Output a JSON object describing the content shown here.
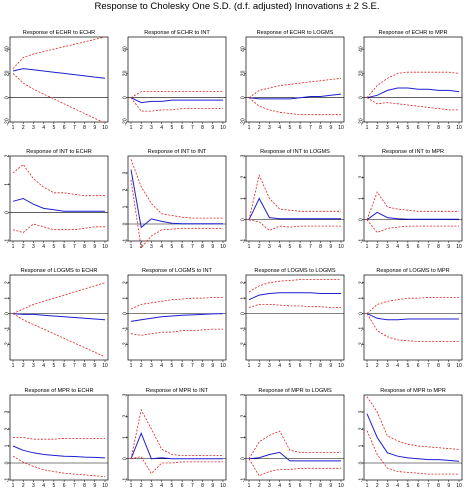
{
  "title": "Response to Cholesky One S.D. (d.f. adjusted) Innovations ± 2 S.E.",
  "colors": {
    "response": "#1f1fd0",
    "band": "#e02020",
    "zero": "#000000",
    "frame": "#000000",
    "background": "#ffffff"
  },
  "chart_data": [
    {
      "type": "line",
      "title": "Response of ECHR to ECHR",
      "x": [
        1,
        2,
        3,
        4,
        5,
        6,
        7,
        8,
        9,
        10
      ],
      "ylim": [
        -20,
        50
      ],
      "yticks": [
        -20,
        0,
        20,
        40
      ],
      "series": [
        {
          "role": "response",
          "values": [
            22,
            24,
            23,
            22,
            21,
            20,
            19,
            18,
            17,
            16
          ]
        },
        {
          "role": "upper",
          "values": [
            24,
            33,
            36,
            38,
            40,
            42,
            44,
            46,
            48,
            50
          ]
        },
        {
          "role": "lower",
          "values": [
            20,
            12,
            7,
            3,
            -1,
            -5,
            -9,
            -13,
            -17,
            -21
          ]
        }
      ]
    },
    {
      "type": "line",
      "title": "Response of ECHR to INT",
      "x": [
        1,
        2,
        3,
        4,
        5,
        6,
        7,
        8,
        9,
        10
      ],
      "ylim": [
        -20,
        50
      ],
      "yticks": [
        -20,
        0,
        20,
        40
      ],
      "series": [
        {
          "role": "response",
          "values": [
            0,
            -4,
            -3,
            -3,
            -2,
            -2,
            -2,
            -2,
            -2,
            -2
          ]
        },
        {
          "role": "upper",
          "values": [
            0,
            5,
            5,
            5,
            5,
            5,
            5,
            5,
            5,
            5
          ]
        },
        {
          "role": "lower",
          "values": [
            0,
            -11,
            -11,
            -10,
            -10,
            -9,
            -9,
            -9,
            -9,
            -9
          ]
        }
      ]
    },
    {
      "type": "line",
      "title": "Response of ECHR to LOGMS",
      "x": [
        1,
        2,
        3,
        4,
        5,
        6,
        7,
        8,
        9,
        10
      ],
      "ylim": [
        -20,
        50
      ],
      "yticks": [
        -20,
        0,
        20,
        40
      ],
      "series": [
        {
          "role": "response",
          "values": [
            0,
            -1,
            -1,
            -1,
            -1,
            0,
            1,
            1,
            2,
            3
          ]
        },
        {
          "role": "upper",
          "values": [
            0,
            6,
            8,
            10,
            11,
            12,
            13,
            14,
            15,
            16
          ]
        },
        {
          "role": "lower",
          "values": [
            0,
            -7,
            -10,
            -12,
            -13,
            -14,
            -14,
            -14,
            -14,
            -14
          ]
        }
      ]
    },
    {
      "type": "line",
      "title": "Response of ECHR to MPR",
      "x": [
        1,
        2,
        3,
        4,
        5,
        6,
        7,
        8,
        9,
        10
      ],
      "ylim": [
        -20,
        50
      ],
      "yticks": [
        -20,
        0,
        20,
        40
      ],
      "series": [
        {
          "role": "response",
          "values": [
            0,
            2,
            6,
            8,
            8,
            7,
            7,
            6,
            6,
            5
          ]
        },
        {
          "role": "upper",
          "values": [
            0,
            10,
            16,
            20,
            21,
            21,
            21,
            21,
            21,
            20
          ]
        },
        {
          "role": "lower",
          "values": [
            0,
            -5,
            -4,
            -5,
            -6,
            -7,
            -8,
            -9,
            -10,
            -10
          ]
        }
      ]
    },
    {
      "type": "line",
      "title": "Response of INT to ECHR",
      "x": [
        1,
        2,
        3,
        4,
        5,
        6,
        7,
        8,
        9,
        10
      ],
      "ylim": [
        -1,
        2
      ],
      "yticks": [
        -1,
        0,
        1,
        2
      ],
      "series": [
        {
          "role": "response",
          "values": [
            0.4,
            0.5,
            0.3,
            0.15,
            0.1,
            0.05,
            0.05,
            0.05,
            0.05,
            0.05
          ]
        },
        {
          "role": "upper",
          "values": [
            1.4,
            1.7,
            1.2,
            0.9,
            0.7,
            0.7,
            0.65,
            0.6,
            0.6,
            0.6
          ]
        },
        {
          "role": "lower",
          "values": [
            -0.6,
            -0.7,
            -0.4,
            -0.5,
            -0.6,
            -0.6,
            -0.6,
            -0.55,
            -0.5,
            -0.5
          ]
        }
      ]
    },
    {
      "type": "line",
      "title": "Response of INT to INT",
      "x": [
        1,
        2,
        3,
        4,
        5,
        6,
        7,
        8,
        9,
        10
      ],
      "ylim": [
        -1,
        4
      ],
      "yticks": [
        -1,
        0,
        1,
        2,
        3
      ],
      "series": [
        {
          "role": "response",
          "values": [
            3.2,
            -0.2,
            0.3,
            0.15,
            0.05,
            0.02,
            0.02,
            0.02,
            0.02,
            0.02
          ]
        },
        {
          "role": "upper",
          "values": [
            3.8,
            2.2,
            1.2,
            0.6,
            0.5,
            0.4,
            0.35,
            0.35,
            0.35,
            0.35
          ]
        },
        {
          "role": "lower",
          "values": [
            2.6,
            -1.4,
            -0.7,
            -0.35,
            -0.3,
            -0.25,
            -0.25,
            -0.25,
            -0.25,
            -0.25
          ]
        }
      ]
    },
    {
      "type": "line",
      "title": "Response of INT to LOGMS",
      "x": [
        1,
        2,
        3,
        4,
        5,
        6,
        7,
        8,
        9,
        10
      ],
      "ylim": [
        -1,
        3
      ],
      "yticks": [
        -1,
        0,
        1,
        2,
        3
      ],
      "series": [
        {
          "role": "response",
          "values": [
            0,
            1.0,
            0.1,
            0.05,
            0.05,
            0.05,
            0.05,
            0.05,
            0.05,
            0.05
          ]
        },
        {
          "role": "upper",
          "values": [
            0,
            2.1,
            1.0,
            0.5,
            0.45,
            0.4,
            0.4,
            0.4,
            0.4,
            0.4
          ]
        },
        {
          "role": "lower",
          "values": [
            0,
            -0.1,
            -0.5,
            -0.3,
            -0.35,
            -0.3,
            -0.3,
            -0.3,
            -0.3,
            -0.3
          ]
        }
      ]
    },
    {
      "type": "line",
      "title": "Response of INT to MPR",
      "x": [
        1,
        2,
        3,
        4,
        5,
        6,
        7,
        8,
        9,
        10
      ],
      "ylim": [
        -1,
        3
      ],
      "yticks": [
        -1,
        0,
        1,
        2,
        3
      ],
      "series": [
        {
          "role": "response",
          "values": [
            0,
            0.35,
            0.1,
            0.05,
            0.02,
            0.02,
            0.02,
            0.02,
            0.02,
            0.02
          ]
        },
        {
          "role": "upper",
          "values": [
            0,
            1.3,
            0.6,
            0.5,
            0.45,
            0.4,
            0.4,
            0.4,
            0.4,
            0.4
          ]
        },
        {
          "role": "lower",
          "values": [
            0,
            -0.6,
            -0.4,
            -0.35,
            -0.3,
            -0.3,
            -0.3,
            -0.3,
            -0.3,
            -0.3
          ]
        }
      ]
    },
    {
      "type": "line",
      "title": "Response of LOGMS to ECHR",
      "x": [
        1,
        2,
        3,
        4,
        5,
        6,
        7,
        8,
        9,
        10
      ],
      "ylim": [
        -3,
        2.5
      ],
      "yticks": [
        -2,
        -1,
        0,
        1,
        2
      ],
      "series": [
        {
          "role": "response",
          "values": [
            0,
            -0.05,
            -0.05,
            -0.1,
            -0.15,
            -0.2,
            -0.25,
            -0.3,
            -0.35,
            -0.4
          ]
        },
        {
          "role": "upper",
          "values": [
            0,
            0.3,
            0.6,
            0.8,
            1.0,
            1.2,
            1.4,
            1.6,
            1.8,
            2.0
          ]
        },
        {
          "role": "lower",
          "values": [
            0,
            -0.4,
            -0.7,
            -1.0,
            -1.3,
            -1.6,
            -1.9,
            -2.2,
            -2.5,
            -2.8
          ]
        }
      ]
    },
    {
      "type": "line",
      "title": "Response of LOGMS to INT",
      "x": [
        1,
        2,
        3,
        4,
        5,
        6,
        7,
        8,
        9,
        10
      ],
      "ylim": [
        -3,
        2.5
      ],
      "yticks": [
        -2,
        -1,
        0,
        1,
        2
      ],
      "series": [
        {
          "role": "response",
          "values": [
            -0.5,
            -0.4,
            -0.3,
            -0.2,
            -0.15,
            -0.1,
            -0.08,
            -0.05,
            -0.02,
            0
          ]
        },
        {
          "role": "upper",
          "values": [
            0.3,
            0.6,
            0.7,
            0.8,
            0.9,
            0.95,
            1.0,
            1.0,
            1.05,
            1.05
          ]
        },
        {
          "role": "lower",
          "values": [
            -1.3,
            -1.4,
            -1.3,
            -1.2,
            -1.2,
            -1.1,
            -1.1,
            -1.05,
            -1.0,
            -1.0
          ]
        }
      ]
    },
    {
      "type": "line",
      "title": "Response of LOGMS to LOGMS",
      "x": [
        1,
        2,
        3,
        4,
        5,
        6,
        7,
        8,
        9,
        10
      ],
      "ylim": [
        -3,
        2.5
      ],
      "yticks": [
        -2,
        -1,
        0,
        1,
        2
      ],
      "series": [
        {
          "role": "response",
          "values": [
            0.9,
            1.2,
            1.3,
            1.35,
            1.35,
            1.35,
            1.35,
            1.3,
            1.3,
            1.3
          ]
        },
        {
          "role": "upper",
          "values": [
            1.4,
            1.8,
            2.0,
            2.1,
            2.15,
            2.2,
            2.2,
            2.2,
            2.2,
            2.2
          ]
        },
        {
          "role": "lower",
          "values": [
            0.4,
            0.6,
            0.6,
            0.55,
            0.5,
            0.5,
            0.45,
            0.45,
            0.4,
            0.4
          ]
        }
      ]
    },
    {
      "type": "line",
      "title": "Response of LOGMS to MPR",
      "x": [
        1,
        2,
        3,
        4,
        5,
        6,
        7,
        8,
        9,
        10
      ],
      "ylim": [
        -3,
        2.5
      ],
      "yticks": [
        -2,
        -1,
        0,
        1,
        2
      ],
      "series": [
        {
          "role": "response",
          "values": [
            0,
            -0.3,
            -0.4,
            -0.4,
            -0.35,
            -0.35,
            -0.35,
            -0.35,
            -0.35,
            -0.35
          ]
        },
        {
          "role": "upper",
          "values": [
            0,
            0.6,
            0.8,
            0.9,
            1.0,
            1.0,
            1.05,
            1.05,
            1.05,
            1.05
          ]
        },
        {
          "role": "lower",
          "values": [
            0,
            -1.1,
            -1.5,
            -1.7,
            -1.75,
            -1.8,
            -1.8,
            -1.8,
            -1.8,
            -1.8
          ]
        }
      ]
    },
    {
      "type": "line",
      "title": "Response of MPR to ECHR",
      "x": [
        1,
        2,
        3,
        4,
        5,
        6,
        7,
        8,
        9,
        10
      ],
      "ylim": [
        -1,
        4
      ],
      "yticks": [
        -1,
        0,
        1,
        2,
        3
      ],
      "series": [
        {
          "role": "response",
          "values": [
            1.0,
            0.75,
            0.6,
            0.5,
            0.45,
            0.4,
            0.38,
            0.35,
            0.33,
            0.3
          ]
        },
        {
          "role": "upper",
          "values": [
            1.5,
            1.5,
            1.4,
            1.4,
            1.4,
            1.45,
            1.45,
            1.45,
            1.45,
            1.45
          ]
        },
        {
          "role": "lower",
          "values": [
            0.4,
            0.05,
            -0.2,
            -0.4,
            -0.5,
            -0.6,
            -0.65,
            -0.7,
            -0.75,
            -0.8
          ]
        }
      ]
    },
    {
      "type": "line",
      "title": "Response of MPR to INT",
      "x": [
        1,
        2,
        3,
        4,
        5,
        6,
        7,
        8,
        9,
        10
      ],
      "ylim": [
        -1,
        3
      ],
      "yticks": [
        -1,
        0,
        1,
        2,
        3
      ],
      "series": [
        {
          "role": "response",
          "values": [
            0,
            1.2,
            0,
            0.05,
            0,
            0,
            0,
            0,
            0,
            0
          ]
        },
        {
          "role": "upper",
          "values": [
            0,
            2.3,
            1.4,
            0.45,
            0.2,
            0.15,
            0.15,
            0.15,
            0.15,
            0.15
          ]
        },
        {
          "role": "lower",
          "values": [
            0,
            0.1,
            -0.7,
            -0.2,
            -0.2,
            -0.15,
            -0.15,
            -0.15,
            -0.15,
            -0.15
          ]
        }
      ]
    },
    {
      "type": "line",
      "title": "Response of MPR to LOGMS",
      "x": [
        1,
        2,
        3,
        4,
        5,
        6,
        7,
        8,
        9,
        10
      ],
      "ylim": [
        -1,
        3
      ],
      "yticks": [
        -1,
        0,
        1,
        2,
        3
      ],
      "series": [
        {
          "role": "response",
          "values": [
            0,
            0.05,
            0.2,
            0.3,
            -0.1,
            -0.1,
            -0.1,
            -0.1,
            -0.1,
            -0.1
          ]
        },
        {
          "role": "upper",
          "values": [
            0,
            0.8,
            1.1,
            1.3,
            0.4,
            0.3,
            0.3,
            0.3,
            0.3,
            0.3
          ]
        },
        {
          "role": "lower",
          "values": [
            0,
            -0.8,
            -0.6,
            -0.5,
            -0.5,
            -0.45,
            -0.45,
            -0.45,
            -0.45,
            -0.45
          ]
        }
      ]
    },
    {
      "type": "line",
      "title": "Response of MPR to MPR",
      "x": [
        1,
        2,
        3,
        4,
        5,
        6,
        7,
        8,
        9,
        10
      ],
      "ylim": [
        -1,
        4
      ],
      "yticks": [
        -1,
        0,
        1,
        2,
        3
      ],
      "series": [
        {
          "role": "response",
          "values": [
            2.9,
            1.5,
            0.6,
            0.4,
            0.3,
            0.25,
            0.2,
            0.2,
            0.15,
            0.1
          ]
        },
        {
          "role": "upper",
          "values": [
            3.9,
            3.0,
            1.6,
            1.3,
            1.1,
            1.0,
            0.95,
            0.9,
            0.85,
            0.8
          ]
        },
        {
          "role": "lower",
          "values": [
            1.9,
            0.5,
            -0.3,
            -0.5,
            -0.55,
            -0.6,
            -0.65,
            -0.65,
            -0.65,
            -0.65
          ]
        }
      ]
    }
  ]
}
